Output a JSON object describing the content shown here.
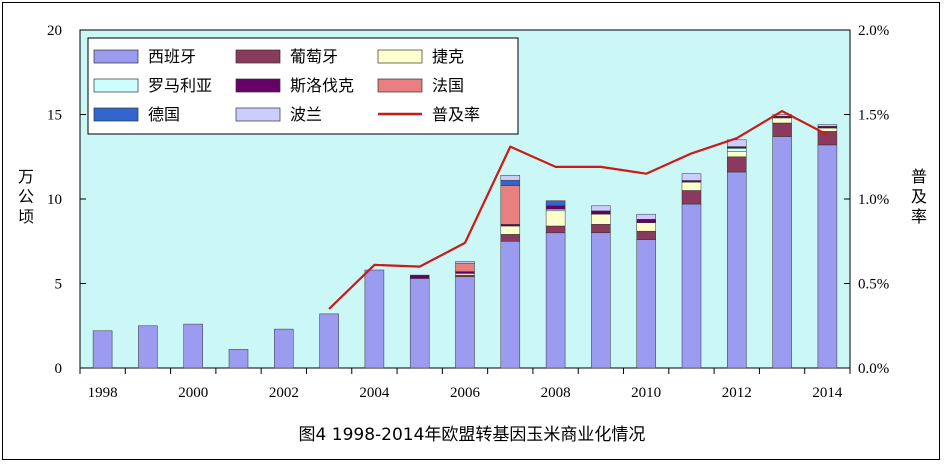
{
  "chart_data": {
    "type": "bar",
    "stacked": true,
    "title": "图4 1998-2014年欧盟转基因玉米商业化情况",
    "ylabel": "万公顷",
    "y2label": "普及率",
    "ylim": [
      0,
      20
    ],
    "y2lim": [
      0,
      2.0
    ],
    "yticks": [
      "0",
      "5",
      "10",
      "15",
      "20"
    ],
    "y2ticks": [
      "0.0%",
      "0.5%",
      "1.0%",
      "1.5%",
      "2.0%"
    ],
    "x_tick_labels": [
      "1998",
      "2000",
      "2002",
      "2004",
      "2006",
      "2008",
      "2010",
      "2012",
      "2014"
    ],
    "categories": [
      "1998",
      "1999",
      "2000",
      "2001",
      "2002",
      "2003",
      "2004",
      "2005",
      "2006",
      "2007",
      "2008",
      "2009",
      "2010",
      "2011",
      "2012",
      "2013",
      "2014"
    ],
    "background_color": "#ccf7f7",
    "legend_position": "top-left",
    "series": [
      {
        "name": "西班牙",
        "color": "#9b9bf0",
        "values": [
          2.2,
          2.5,
          2.6,
          1.1,
          2.3,
          3.2,
          5.8,
          5.3,
          5.4,
          7.5,
          8.0,
          8.0,
          7.6,
          9.7,
          11.6,
          13.7,
          13.2
        ]
      },
      {
        "name": "葡萄牙",
        "color": "#8a3a5c",
        "values": [
          0,
          0,
          0,
          0,
          0,
          0,
          0,
          0,
          0.1,
          0.4,
          0.4,
          0.5,
          0.5,
          0.8,
          0.9,
          0.8,
          0.8
        ]
      },
      {
        "name": "捷克",
        "color": "#ffffcc",
        "values": [
          0,
          0,
          0,
          0,
          0,
          0,
          0,
          0,
          0.1,
          0.5,
          0.9,
          0.6,
          0.5,
          0.5,
          0.3,
          0.3,
          0.2
        ]
      },
      {
        "name": "罗马利亚",
        "color": "#ccffff",
        "values": [
          0,
          0,
          0,
          0,
          0,
          0,
          0,
          0,
          0,
          0,
          0.1,
          0,
          0,
          0,
          0.2,
          0,
          0
        ]
      },
      {
        "name": "斯洛伐克",
        "color": "#660066",
        "values": [
          0,
          0,
          0,
          0,
          0,
          0,
          0,
          0.2,
          0.1,
          0.1,
          0.2,
          0.2,
          0.2,
          0.1,
          0.1,
          0.1,
          0.1
        ]
      },
      {
        "name": "法国",
        "color": "#e88080",
        "values": [
          0,
          0,
          0,
          0,
          0,
          0,
          0,
          0,
          0.5,
          2.3,
          0,
          0,
          0,
          0,
          0,
          0,
          0
        ]
      },
      {
        "name": "德国",
        "color": "#3366cc",
        "values": [
          0,
          0,
          0,
          0,
          0,
          0,
          0,
          0,
          0,
          0.3,
          0.3,
          0,
          0,
          0,
          0,
          0,
          0
        ]
      },
      {
        "name": "波兰",
        "color": "#ccccff",
        "values": [
          0,
          0,
          0,
          0,
          0,
          0,
          0,
          0,
          0.1,
          0.3,
          0,
          0.3,
          0.3,
          0.4,
          0.4,
          0.1,
          0.1
        ]
      }
    ],
    "line_series": {
      "name": "普及率",
      "color": "#cc1a1a",
      "axis": "right",
      "start_index": 5,
      "values": [
        0.35,
        0.61,
        0.6,
        0.74,
        1.31,
        1.19,
        1.19,
        1.15,
        1.27,
        1.36,
        1.52,
        1.38
      ]
    }
  }
}
